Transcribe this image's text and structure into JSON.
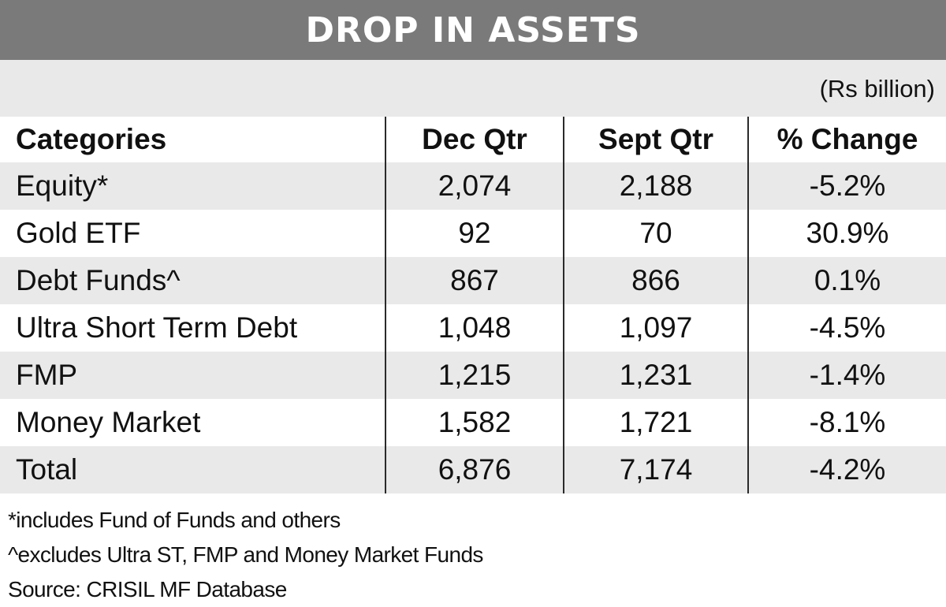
{
  "title": "DROP IN ASSETS",
  "units": "(Rs billion)",
  "colors": {
    "title_bg": "#7a7a7a",
    "stripe": "#e9e9e9",
    "rule": "#2a2a2a"
  },
  "chart_data": {
    "type": "table",
    "title": "DROP IN ASSETS",
    "units": "(Rs billion)",
    "columns": [
      "Categories",
      "Dec Qtr",
      "Sept Qtr",
      "% Change"
    ],
    "rows": [
      [
        "Equity*",
        "2,074",
        "2,188",
        "-5.2%"
      ],
      [
        "Gold ETF",
        "92",
        "70",
        "30.9%"
      ],
      [
        "Debt Funds^",
        "867",
        "866",
        "0.1%"
      ],
      [
        "Ultra Short Term Debt",
        "1,048",
        "1,097",
        "-4.5%"
      ],
      [
        "FMP",
        "1,215",
        "1,231",
        "-1.4%"
      ],
      [
        "Money Market",
        "1,582",
        "1,721",
        "-8.1%"
      ],
      [
        "Total",
        "6,876",
        "7,174",
        "-4.2%"
      ]
    ]
  },
  "footnotes": [
    "*includes Fund of Funds and others",
    "^excludes Ultra ST, FMP and Money Market Funds",
    "Source: CRISIL MF Database"
  ]
}
